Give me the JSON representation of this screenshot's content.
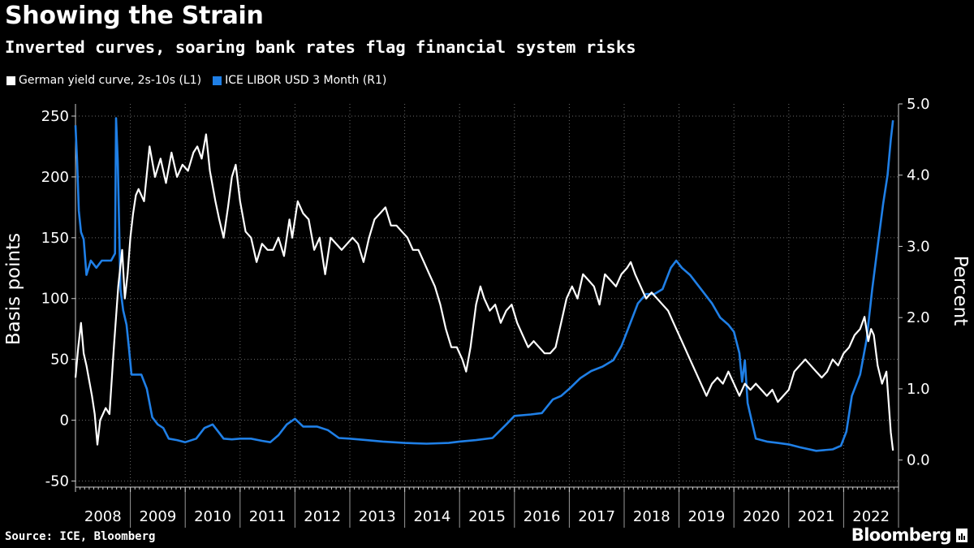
{
  "title": "Showing the Strain",
  "subtitle": "Inverted curves, soaring bank rates flag financial system risks",
  "source": "Source: ICE, Bloomberg",
  "brand": "Bloomberg",
  "colors": {
    "background": "#000000",
    "german": "#ffffff",
    "libor": "#1f7fe6",
    "grid": "#6b6b6b"
  },
  "legend": [
    {
      "label": "German yield curve, 2s-10s (L1)",
      "color": "#ffffff"
    },
    {
      "label": "ICE LIBOR USD 3 Month  (R1)",
      "color": "#1f7fe6"
    }
  ],
  "chart_data": {
    "type": "line",
    "y_left_label": "Basis points",
    "y_right_label": "Percent",
    "y_left_range": [
      -55,
      260
    ],
    "y_right_range": [
      -0.38,
      5.0
    ],
    "y_left_ticks": [
      "-50",
      "0",
      "50",
      "100",
      "150",
      "200",
      "250"
    ],
    "y_right_ticks": [
      "0.0",
      "1.0",
      "2.0",
      "3.0",
      "4.0",
      "5.0"
    ],
    "x_range": [
      2008.0,
      2023.0
    ],
    "x_labels": [
      "2008",
      "2009",
      "2010",
      "2011",
      "2012",
      "2013",
      "2014",
      "2015",
      "2016",
      "2017",
      "2018",
      "2019",
      "2020",
      "2021",
      "2022"
    ],
    "grid": true,
    "legend_position": "top-left",
    "series": [
      {
        "name": "German yield curve, 2s-10s (L1)",
        "axis": "left",
        "points": [
          [
            2008.0,
            35
          ],
          [
            2008.05,
            60
          ],
          [
            2008.1,
            80
          ],
          [
            2008.15,
            55
          ],
          [
            2008.2,
            45
          ],
          [
            2008.3,
            20
          ],
          [
            2008.35,
            5
          ],
          [
            2008.4,
            -20
          ],
          [
            2008.45,
            0
          ],
          [
            2008.55,
            10
          ],
          [
            2008.62,
            5
          ],
          [
            2008.7,
            60
          ],
          [
            2008.78,
            110
          ],
          [
            2008.85,
            140
          ],
          [
            2008.9,
            100
          ],
          [
            2008.95,
            120
          ],
          [
            2009.0,
            150
          ],
          [
            2009.05,
            170
          ],
          [
            2009.1,
            185
          ],
          [
            2009.15,
            190
          ],
          [
            2009.25,
            180
          ],
          [
            2009.35,
            225
          ],
          [
            2009.45,
            200
          ],
          [
            2009.55,
            215
          ],
          [
            2009.65,
            195
          ],
          [
            2009.75,
            220
          ],
          [
            2009.85,
            200
          ],
          [
            2009.95,
            210
          ],
          [
            2010.05,
            205
          ],
          [
            2010.15,
            220
          ],
          [
            2010.22,
            225
          ],
          [
            2010.3,
            215
          ],
          [
            2010.38,
            235
          ],
          [
            2010.45,
            205
          ],
          [
            2010.55,
            180
          ],
          [
            2010.62,
            165
          ],
          [
            2010.7,
            150
          ],
          [
            2010.78,
            175
          ],
          [
            2010.85,
            200
          ],
          [
            2010.92,
            210
          ],
          [
            2011.0,
            180
          ],
          [
            2011.1,
            155
          ],
          [
            2011.2,
            150
          ],
          [
            2011.3,
            130
          ],
          [
            2011.4,
            145
          ],
          [
            2011.5,
            140
          ],
          [
            2011.6,
            140
          ],
          [
            2011.7,
            150
          ],
          [
            2011.8,
            135
          ],
          [
            2011.9,
            165
          ],
          [
            2011.95,
            150
          ],
          [
            2012.05,
            180
          ],
          [
            2012.15,
            170
          ],
          [
            2012.25,
            165
          ],
          [
            2012.35,
            140
          ],
          [
            2012.45,
            150
          ],
          [
            2012.55,
            120
          ],
          [
            2012.65,
            150
          ],
          [
            2012.75,
            145
          ],
          [
            2012.85,
            140
          ],
          [
            2012.95,
            145
          ],
          [
            2013.05,
            150
          ],
          [
            2013.15,
            145
          ],
          [
            2013.25,
            130
          ],
          [
            2013.35,
            150
          ],
          [
            2013.45,
            165
          ],
          [
            2013.55,
            170
          ],
          [
            2013.65,
            175
          ],
          [
            2013.75,
            160
          ],
          [
            2013.85,
            160
          ],
          [
            2013.95,
            155
          ],
          [
            2014.05,
            150
          ],
          [
            2014.15,
            140
          ],
          [
            2014.25,
            140
          ],
          [
            2014.35,
            130
          ],
          [
            2014.45,
            120
          ],
          [
            2014.55,
            110
          ],
          [
            2014.65,
            95
          ],
          [
            2014.75,
            75
          ],
          [
            2014.85,
            60
          ],
          [
            2014.95,
            60
          ],
          [
            2015.05,
            50
          ],
          [
            2015.12,
            40
          ],
          [
            2015.2,
            60
          ],
          [
            2015.3,
            95
          ],
          [
            2015.38,
            110
          ],
          [
            2015.45,
            100
          ],
          [
            2015.55,
            90
          ],
          [
            2015.65,
            95
          ],
          [
            2015.75,
            80
          ],
          [
            2015.85,
            90
          ],
          [
            2015.95,
            95
          ],
          [
            2016.05,
            80
          ],
          [
            2016.15,
            70
          ],
          [
            2016.25,
            60
          ],
          [
            2016.35,
            65
          ],
          [
            2016.45,
            60
          ],
          [
            2016.55,
            55
          ],
          [
            2016.65,
            55
          ],
          [
            2016.75,
            60
          ],
          [
            2016.85,
            80
          ],
          [
            2016.95,
            100
          ],
          [
            2017.05,
            110
          ],
          [
            2017.15,
            100
          ],
          [
            2017.25,
            120
          ],
          [
            2017.35,
            115
          ],
          [
            2017.45,
            110
          ],
          [
            2017.55,
            95
          ],
          [
            2017.65,
            120
          ],
          [
            2017.75,
            115
          ],
          [
            2017.85,
            110
          ],
          [
            2017.95,
            120
          ],
          [
            2018.05,
            125
          ],
          [
            2018.12,
            130
          ],
          [
            2018.2,
            120
          ],
          [
            2018.3,
            110
          ],
          [
            2018.4,
            100
          ],
          [
            2018.5,
            105
          ],
          [
            2018.6,
            100
          ],
          [
            2018.7,
            95
          ],
          [
            2018.8,
            90
          ],
          [
            2018.9,
            80
          ],
          [
            2019.0,
            70
          ],
          [
            2019.1,
            60
          ],
          [
            2019.2,
            50
          ],
          [
            2019.3,
            40
          ],
          [
            2019.4,
            30
          ],
          [
            2019.5,
            20
          ],
          [
            2019.6,
            30
          ],
          [
            2019.7,
            35
          ],
          [
            2019.8,
            30
          ],
          [
            2019.9,
            40
          ],
          [
            2020.0,
            30
          ],
          [
            2020.1,
            20
          ],
          [
            2020.2,
            30
          ],
          [
            2020.3,
            25
          ],
          [
            2020.4,
            30
          ],
          [
            2020.5,
            25
          ],
          [
            2020.6,
            20
          ],
          [
            2020.7,
            25
          ],
          [
            2020.8,
            15
          ],
          [
            2020.9,
            20
          ],
          [
            2021.0,
            25
          ],
          [
            2021.1,
            40
          ],
          [
            2021.2,
            45
          ],
          [
            2021.3,
            50
          ],
          [
            2021.4,
            45
          ],
          [
            2021.5,
            40
          ],
          [
            2021.6,
            35
          ],
          [
            2021.7,
            40
          ],
          [
            2021.8,
            50
          ],
          [
            2021.9,
            45
          ],
          [
            2022.0,
            55
          ],
          [
            2022.1,
            60
          ],
          [
            2022.2,
            70
          ],
          [
            2022.3,
            75
          ],
          [
            2022.38,
            85
          ],
          [
            2022.45,
            65
          ],
          [
            2022.5,
            75
          ],
          [
            2022.55,
            70
          ],
          [
            2022.62,
            45
          ],
          [
            2022.7,
            30
          ],
          [
            2022.78,
            40
          ],
          [
            2022.82,
            15
          ],
          [
            2022.86,
            -10
          ],
          [
            2022.9,
            -25
          ]
        ]
      },
      {
        "name": "ICE LIBOR USD 3 Month  (R1)",
        "axis": "right",
        "points": [
          [
            2008.0,
            4.7
          ],
          [
            2008.03,
            4.2
          ],
          [
            2008.06,
            3.5
          ],
          [
            2008.1,
            3.2
          ],
          [
            2008.15,
            3.1
          ],
          [
            2008.2,
            2.6
          ],
          [
            2008.28,
            2.8
          ],
          [
            2008.38,
            2.7
          ],
          [
            2008.48,
            2.8
          ],
          [
            2008.58,
            2.8
          ],
          [
            2008.65,
            2.8
          ],
          [
            2008.72,
            2.9
          ],
          [
            2008.74,
            4.8
          ],
          [
            2008.77,
            4.2
          ],
          [
            2008.82,
            2.4
          ],
          [
            2008.87,
            2.1
          ],
          [
            2008.93,
            1.9
          ],
          [
            2008.97,
            1.6
          ],
          [
            2009.02,
            1.2
          ],
          [
            2009.1,
            1.2
          ],
          [
            2009.2,
            1.2
          ],
          [
            2009.3,
            1.0
          ],
          [
            2009.4,
            0.6
          ],
          [
            2009.5,
            0.5
          ],
          [
            2009.6,
            0.45
          ],
          [
            2009.7,
            0.3
          ],
          [
            2009.85,
            0.28
          ],
          [
            2010.0,
            0.25
          ],
          [
            2010.2,
            0.3
          ],
          [
            2010.35,
            0.45
          ],
          [
            2010.5,
            0.5
          ],
          [
            2010.6,
            0.4
          ],
          [
            2010.7,
            0.3
          ],
          [
            2010.85,
            0.29
          ],
          [
            2011.0,
            0.3
          ],
          [
            2011.2,
            0.3
          ],
          [
            2011.4,
            0.27
          ],
          [
            2011.55,
            0.25
          ],
          [
            2011.7,
            0.35
          ],
          [
            2011.85,
            0.5
          ],
          [
            2012.0,
            0.58
          ],
          [
            2012.15,
            0.47
          ],
          [
            2012.4,
            0.47
          ],
          [
            2012.6,
            0.42
          ],
          [
            2012.8,
            0.31
          ],
          [
            2013.0,
            0.3
          ],
          [
            2013.3,
            0.28
          ],
          [
            2013.6,
            0.26
          ],
          [
            2014.0,
            0.24
          ],
          [
            2014.4,
            0.23
          ],
          [
            2014.8,
            0.24
          ],
          [
            2015.0,
            0.26
          ],
          [
            2015.3,
            0.28
          ],
          [
            2015.6,
            0.31
          ],
          [
            2015.85,
            0.5
          ],
          [
            2016.0,
            0.62
          ],
          [
            2016.3,
            0.64
          ],
          [
            2016.5,
            0.66
          ],
          [
            2016.7,
            0.85
          ],
          [
            2016.85,
            0.9
          ],
          [
            2017.0,
            1.0
          ],
          [
            2017.2,
            1.15
          ],
          [
            2017.4,
            1.25
          ],
          [
            2017.6,
            1.31
          ],
          [
            2017.8,
            1.4
          ],
          [
            2017.95,
            1.6
          ],
          [
            2018.1,
            1.9
          ],
          [
            2018.25,
            2.2
          ],
          [
            2018.4,
            2.33
          ],
          [
            2018.55,
            2.33
          ],
          [
            2018.7,
            2.4
          ],
          [
            2018.85,
            2.7
          ],
          [
            2018.95,
            2.8
          ],
          [
            2019.05,
            2.7
          ],
          [
            2019.2,
            2.6
          ],
          [
            2019.4,
            2.4
          ],
          [
            2019.6,
            2.2
          ],
          [
            2019.75,
            2.0
          ],
          [
            2019.9,
            1.9
          ],
          [
            2020.0,
            1.8
          ],
          [
            2020.1,
            1.5
          ],
          [
            2020.15,
            1.1
          ],
          [
            2020.2,
            1.4
          ],
          [
            2020.25,
            0.8
          ],
          [
            2020.4,
            0.3
          ],
          [
            2020.6,
            0.26
          ],
          [
            2020.8,
            0.24
          ],
          [
            2021.0,
            0.22
          ],
          [
            2021.2,
            0.18
          ],
          [
            2021.5,
            0.13
          ],
          [
            2021.8,
            0.15
          ],
          [
            2021.95,
            0.2
          ],
          [
            2022.05,
            0.4
          ],
          [
            2022.15,
            0.9
          ],
          [
            2022.3,
            1.2
          ],
          [
            2022.42,
            1.7
          ],
          [
            2022.52,
            2.4
          ],
          [
            2022.62,
            3.0
          ],
          [
            2022.72,
            3.6
          ],
          [
            2022.8,
            4.0
          ],
          [
            2022.86,
            4.5
          ],
          [
            2022.9,
            4.77
          ]
        ]
      }
    ]
  }
}
